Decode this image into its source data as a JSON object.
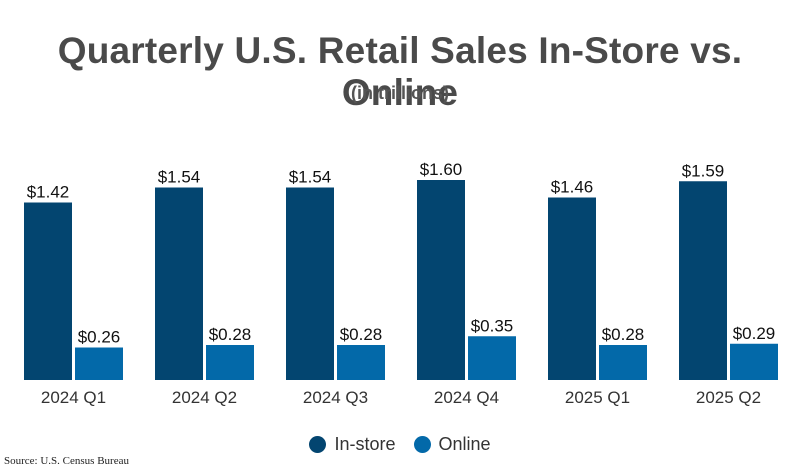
{
  "chart_data": {
    "type": "bar",
    "title": "Quarterly U.S. Retail Sales In-Store vs. Online",
    "subtitle": "(in trillions)",
    "categories": [
      "2024 Q1",
      "2024 Q2",
      "2024 Q3",
      "2024 Q4",
      "2025 Q1",
      "2025 Q2"
    ],
    "series": [
      {
        "name": "In-store",
        "color": "#034570",
        "values": [
          1.42,
          1.54,
          1.54,
          1.6,
          1.46,
          1.59
        ],
        "labels": [
          "$1.42",
          "$1.54",
          "$1.54",
          "$1.60",
          "$1.46",
          "$1.59"
        ]
      },
      {
        "name": "Online",
        "color": "#0369a9",
        "values": [
          0.26,
          0.28,
          0.28,
          0.35,
          0.28,
          0.29
        ],
        "labels": [
          "$0.26",
          "$0.28",
          "$0.28",
          "$0.35",
          "$0.28",
          "$0.29"
        ]
      }
    ],
    "ylim": [
      0,
      1.8
    ],
    "grid": false,
    "legend": "bottom-center",
    "source": "Source: U.S. Census Bureau"
  }
}
